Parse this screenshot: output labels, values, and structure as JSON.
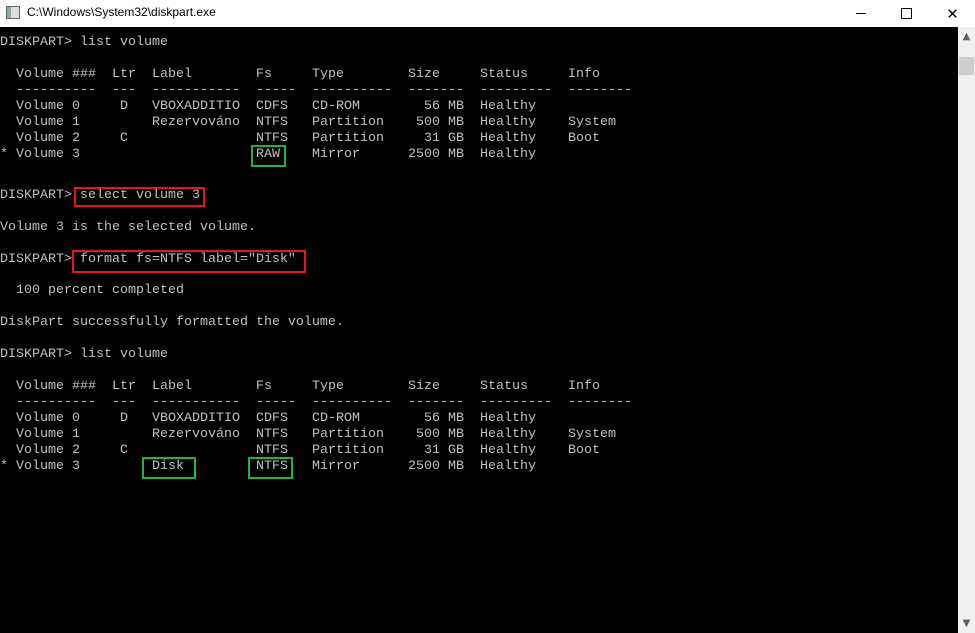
{
  "window": {
    "title": "C:\\Windows\\System32\\diskpart.exe",
    "icon": "console-app-icon"
  },
  "controls": {
    "minimize": "minimize-icon",
    "maximize": "maximize-icon",
    "close": "close-icon",
    "close_glyph": "✕"
  },
  "highlight_colors": {
    "command": "#e8141c",
    "result": "#1fb24a"
  },
  "console": {
    "cmd1": "DISKPART> list volume",
    "table1": {
      "headers": [
        "",
        "Volume ###",
        "Ltr",
        "Label",
        "Fs",
        "Type",
        "Size",
        "Status",
        "Info"
      ],
      "dashes": [
        "",
        "----------",
        "---",
        "-----------",
        "-----",
        "----------",
        "-------",
        "---------",
        "--------"
      ],
      "rows": [
        [
          "",
          "Volume 0",
          "D",
          "VBOXADDITIO",
          "CDFS",
          "CD-ROM",
          "56 MB",
          "Healthy",
          ""
        ],
        [
          "",
          "Volume 1",
          "",
          "Rezervováno",
          "NTFS",
          "Partition",
          "500 MB",
          "Healthy",
          "System"
        ],
        [
          "",
          "Volume 2",
          "C",
          "",
          "NTFS",
          "Partition",
          "31 GB",
          "Healthy",
          "Boot"
        ],
        [
          "*",
          "Volume 3",
          "",
          "",
          "RAW",
          "Mirror",
          "2500 MB",
          "Healthy",
          ""
        ]
      ]
    },
    "cmd2": "DISKPART> select volume 3",
    "out2": "Volume 3 is the selected volume.",
    "cmd3": "DISKPART> format fs=NTFS label=\"Disk\"",
    "out3a": "  100 percent completed",
    "out3b": "DiskPart successfully formatted the volume.",
    "cmd4": "DISKPART> list volume",
    "table2": {
      "headers": [
        "",
        "Volume ###",
        "Ltr",
        "Label",
        "Fs",
        "Type",
        "Size",
        "Status",
        "Info"
      ],
      "dashes": [
        "",
        "----------",
        "---",
        "-----------",
        "-----",
        "----------",
        "-------",
        "---------",
        "--------"
      ],
      "rows": [
        [
          "",
          "Volume 0",
          "D",
          "VBOXADDITIO",
          "CDFS",
          "CD-ROM",
          "56 MB",
          "Healthy",
          ""
        ],
        [
          "",
          "Volume 1",
          "",
          "Rezervováno",
          "NTFS",
          "Partition",
          "500 MB",
          "Healthy",
          "System"
        ],
        [
          "",
          "Volume 2",
          "C",
          "",
          "NTFS",
          "Partition",
          "31 GB",
          "Healthy",
          "Boot"
        ],
        [
          "*",
          "Volume 3",
          "",
          "Disk",
          "NTFS",
          "Mirror",
          "2500 MB",
          "Healthy",
          ""
        ]
      ]
    }
  }
}
